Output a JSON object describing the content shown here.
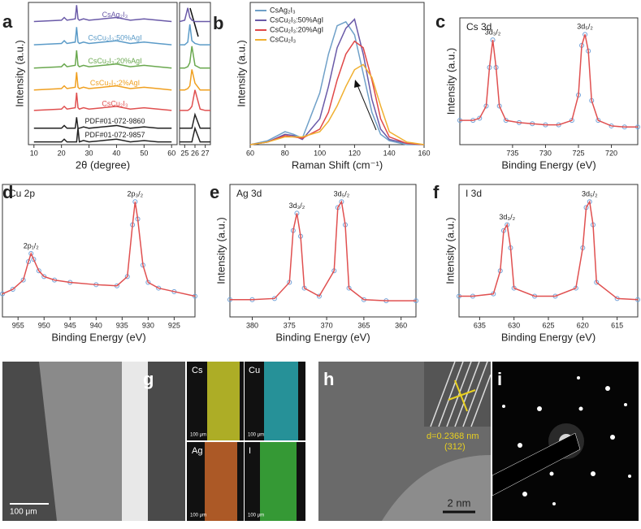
{
  "chart_data": [
    {
      "type": "line",
      "label": "a",
      "xlabel": "2θ (degree)",
      "ylabel": "Intensity (a.u.)",
      "xlim": [
        8,
        62
      ],
      "xticks": [
        10,
        20,
        30,
        40,
        50,
        60
      ],
      "ylim": [
        0,
        104
      ],
      "inline_names": true,
      "x": [
        10,
        20,
        21,
        22,
        25,
        25.5,
        26,
        26.5,
        28,
        30,
        35,
        40,
        45,
        50,
        55,
        60
      ],
      "series": [
        {
          "name": "CsAg₂I₃",
          "color": "#6a5aa8",
          "values": [
            90,
            91,
            93,
            91,
            92,
            102,
            92,
            91,
            92,
            91,
            92,
            93,
            91,
            92,
            91,
            90
          ]
        },
        {
          "name": "CsCu₂I₃:50%AgI",
          "color": "#5b9bc8",
          "values": [
            73,
            74,
            76,
            74,
            75,
            86,
            75,
            74,
            75,
            74,
            75,
            76,
            74,
            75,
            74,
            73
          ]
        },
        {
          "name": "CsCu₂I₃:20%AgI",
          "color": "#6aa84f",
          "values": [
            56,
            57,
            59,
            57,
            58,
            69,
            58,
            57,
            58,
            57,
            58,
            59,
            57,
            58,
            57,
            56
          ]
        },
        {
          "name": "CsCu₂I₃:2%AgI",
          "color": "#f0a020",
          "values": [
            40,
            41,
            43,
            41,
            42,
            53,
            42,
            41,
            42,
            41,
            42,
            43,
            41,
            42,
            41,
            40
          ]
        },
        {
          "name": "CsCu₂I₃",
          "color": "#e05050",
          "values": [
            25,
            26,
            28,
            26,
            27,
            38,
            27,
            26,
            27,
            26,
            27,
            28,
            26,
            27,
            26,
            25
          ]
        },
        {
          "name": "PDF#01-072-9860",
          "color": "#222222",
          "values": [
            12,
            12,
            14,
            12,
            12,
            20,
            12,
            12,
            13,
            12,
            13,
            14,
            12,
            13,
            12,
            12
          ]
        },
        {
          "name": "PDF#01-072-9857",
          "color": "#222222",
          "values": [
            2,
            2,
            4,
            2,
            2,
            2,
            12,
            2,
            3,
            2,
            3,
            4,
            2,
            3,
            2,
            2
          ]
        }
      ]
    },
    {
      "type": "line",
      "xlim": [
        24.5,
        27.5
      ],
      "xticks": [
        25,
        26,
        27
      ],
      "ylim": [
        0,
        104
      ],
      "x": [
        24.5,
        25,
        25.3,
        25.5,
        25.7,
        26,
        26.5,
        27,
        27.5
      ],
      "series": [
        {
          "color": "#6a5aa8",
          "values": [
            90,
            91,
            100,
            93,
            91,
            90,
            90,
            90,
            90
          ]
        },
        {
          "color": "#5b9bc8",
          "values": [
            73,
            73,
            75,
            88,
            76,
            74,
            73,
            73,
            73
          ]
        },
        {
          "color": "#6aa84f",
          "values": [
            56,
            56,
            57,
            60,
            72,
            58,
            56,
            56,
            56
          ]
        },
        {
          "color": "#f0a020",
          "values": [
            40,
            40,
            41,
            43,
            55,
            45,
            40,
            40,
            40
          ]
        },
        {
          "color": "#e05050",
          "values": [
            25,
            25,
            25,
            26,
            28,
            40,
            26,
            25,
            25
          ]
        },
        {
          "color": "#222222",
          "values": [
            12,
            12,
            12,
            12,
            12,
            22,
            12,
            12,
            12
          ]
        },
        {
          "color": "#222222",
          "values": [
            2,
            2,
            2,
            2,
            2,
            12,
            2,
            2,
            2
          ]
        }
      ]
    },
    {
      "type": "line",
      "label": "b",
      "xlabel": "Raman Shift (cm⁻¹)",
      "ylabel": "Intensity (a.u.)",
      "xlim": [
        60,
        160
      ],
      "xticks": [
        60,
        80,
        100,
        120,
        140,
        160
      ],
      "ylim": [
        0,
        110
      ],
      "legend": true,
      "x": [
        60,
        70,
        80,
        85,
        90,
        100,
        105,
        110,
        115,
        120,
        125,
        130,
        135,
        140,
        150,
        160
      ],
      "series": [
        {
          "name": "CsAg₂I₃",
          "color": "#6fa0c8",
          "values": [
            0,
            3,
            10,
            8,
            5,
            40,
            70,
            92,
            95,
            85,
            55,
            25,
            8,
            3,
            0,
            0
          ]
        },
        {
          "name": "CsCu₂I₃:50%AgI",
          "color": "#6a5aa8",
          "values": [
            0,
            2,
            8,
            7,
            4,
            20,
            45,
            75,
            90,
            97,
            70,
            35,
            12,
            4,
            1,
            0
          ]
        },
        {
          "name": "CsCu₂I₃:20%AgI",
          "color": "#e04848",
          "values": [
            0,
            2,
            7,
            6,
            5,
            12,
            25,
            50,
            70,
            80,
            75,
            50,
            20,
            6,
            1,
            0
          ]
        },
        {
          "name": "CsCu₂I₃",
          "color": "#f0b030",
          "values": [
            0,
            2,
            6,
            6,
            6,
            10,
            18,
            30,
            45,
            58,
            62,
            52,
            30,
            10,
            2,
            0
          ]
        }
      ]
    },
    {
      "type": "line",
      "label": "c",
      "title": "Cs 3d",
      "xlabel": "Binding Energy (eV)",
      "ylabel": "Intensity (a.u.)",
      "xlim": [
        743,
        716
      ],
      "xticks": [
        735,
        730,
        725,
        720
      ],
      "ylim": [
        0,
        115
      ],
      "x": [
        743,
        741,
        740,
        739,
        738.5,
        738,
        737.5,
        737,
        736,
        734,
        732,
        730,
        728,
        726,
        725,
        724.5,
        724,
        723.5,
        723,
        722,
        720,
        718,
        716
      ],
      "series": [
        {
          "color": "#6fa0d8",
          "marker": "circle",
          "values": [
            22,
            22,
            24,
            35,
            70,
            95,
            70,
            35,
            22,
            20,
            19,
            18,
            18,
            22,
            45,
            90,
            100,
            85,
            40,
            22,
            17,
            16,
            16
          ]
        },
        {
          "color": "#e05050",
          "values": [
            22,
            22,
            24,
            35,
            70,
            95,
            70,
            35,
            22,
            20,
            19,
            18,
            18,
            22,
            45,
            90,
            100,
            85,
            40,
            22,
            17,
            16,
            16
          ]
        }
      ],
      "annotations": [
        {
          "text": "3d₃/₂",
          "x": 738
        },
        {
          "text": "3d₅/₂",
          "x": 724
        }
      ]
    },
    {
      "type": "line",
      "label": "d",
      "title": "Cu 2p",
      "xlabel": "Binding Energy (eV)",
      "ylabel": "Intensity (a.u.)",
      "xlim": [
        958,
        921
      ],
      "xticks": [
        955,
        950,
        945,
        940,
        935,
        930,
        925
      ],
      "ylim": [
        0,
        115
      ],
      "x": [
        958,
        956,
        954,
        953,
        952.5,
        952,
        951,
        950,
        948,
        945,
        940,
        936,
        934,
        933,
        932.5,
        932,
        931,
        930,
        928,
        925,
        921
      ],
      "series": [
        {
          "color": "#6fa0d8",
          "marker": "circle",
          "values": [
            20,
            24,
            32,
            48,
            55,
            50,
            40,
            35,
            32,
            30,
            28,
            27,
            35,
            80,
            100,
            85,
            45,
            30,
            25,
            22,
            18
          ]
        },
        {
          "color": "#e05050",
          "values": [
            20,
            24,
            32,
            48,
            55,
            50,
            40,
            35,
            32,
            30,
            28,
            27,
            35,
            80,
            100,
            85,
            45,
            30,
            25,
            22,
            18
          ]
        }
      ],
      "annotations": [
        {
          "text": "2p₁/₂",
          "x": 952.5
        },
        {
          "text": "2p₃/₂",
          "x": 932.5
        }
      ]
    },
    {
      "type": "line",
      "label": "e",
      "title": "Ag 3d",
      "xlabel": "Binding Energy (eV)",
      "ylabel": "Intensity (a.u.)",
      "xlim": [
        383,
        358
      ],
      "xticks": [
        380,
        375,
        370,
        365,
        360
      ],
      "ylim": [
        0,
        115
      ],
      "x": [
        383,
        380,
        377,
        375,
        374.5,
        374,
        373.5,
        373,
        371,
        369,
        368.5,
        368,
        367.5,
        367,
        365,
        362,
        358
      ],
      "series": [
        {
          "color": "#6fa0d8",
          "marker": "circle",
          "values": [
            15,
            15,
            16,
            30,
            75,
            90,
            70,
            25,
            18,
            40,
            95,
            100,
            80,
            25,
            15,
            14,
            14
          ]
        },
        {
          "color": "#e05050",
          "values": [
            15,
            15,
            16,
            30,
            75,
            90,
            70,
            25,
            18,
            40,
            95,
            100,
            80,
            25,
            15,
            14,
            14
          ]
        }
      ],
      "annotations": [
        {
          "text": "3d₃/₂",
          "x": 374
        },
        {
          "text": "3d₅/₂",
          "x": 368
        }
      ]
    },
    {
      "type": "line",
      "label": "f",
      "title": "I 3d",
      "xlabel": "Binding Energy (eV)",
      "ylabel": "Intensity (a.u.)",
      "xlim": [
        638,
        612
      ],
      "xticks": [
        635,
        630,
        625,
        620,
        615
      ],
      "ylim": [
        0,
        115
      ],
      "x": [
        638,
        636,
        633,
        632,
        631.5,
        631,
        630.5,
        630,
        627,
        624,
        621,
        620,
        619.5,
        619,
        618.5,
        618,
        615,
        612
      ],
      "series": [
        {
          "color": "#6fa0d8",
          "marker": "circle",
          "values": [
            18,
            18,
            20,
            40,
            75,
            80,
            60,
            25,
            18,
            18,
            25,
            60,
            95,
            100,
            80,
            30,
            16,
            15
          ]
        },
        {
          "color": "#e05050",
          "values": [
            18,
            18,
            20,
            40,
            75,
            80,
            60,
            25,
            18,
            18,
            25,
            60,
            95,
            100,
            80,
            30,
            16,
            15
          ]
        }
      ],
      "annotations": [
        {
          "text": "3d₃/₂",
          "x": 631
        },
        {
          "text": "3d₅/₂",
          "x": 619
        }
      ]
    }
  ],
  "images": {
    "g": {
      "label": "g",
      "scale": "100 μm",
      "maps": [
        "Cs",
        "Cu",
        "Ag",
        "I"
      ],
      "map_scale": "100 μm"
    },
    "h": {
      "label": "h",
      "scale": "2 nm",
      "spacing": "d=0.2368 nm",
      "plane": "(312)"
    },
    "i": {
      "label": "i"
    }
  }
}
